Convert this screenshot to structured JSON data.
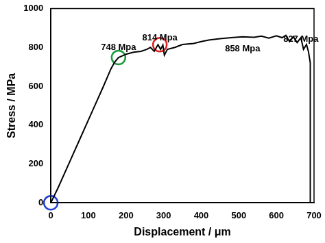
{
  "chart_data": {
    "type": "line",
    "x_label": "Displacement / μm",
    "y_label": "Stress / MPa",
    "xlim": [
      0,
      700
    ],
    "xticks": [
      0,
      100,
      200,
      300,
      400,
      500,
      600,
      700
    ],
    "ylim": [
      0,
      1000
    ],
    "yticks": [
      0,
      200,
      400,
      600,
      800,
      1000
    ],
    "grid": false,
    "series": [
      {
        "name": "Stress",
        "color": "#000000",
        "line_style": "solid",
        "x": [
          0,
          20,
          50,
          80,
          110,
          140,
          160,
          170,
          180,
          200,
          220,
          240,
          255,
          265,
          275,
          285,
          292,
          298,
          302,
          310,
          330,
          350,
          380,
          400,
          420,
          450,
          480,
          510,
          540,
          560,
          580,
          600,
          615,
          625,
          635,
          645,
          655,
          665,
          672,
          680,
          685,
          690,
          690
        ],
        "values": [
          0,
          80,
          210,
          340,
          470,
          600,
          690,
          725,
          748,
          765,
          775,
          780,
          790,
          800,
          780,
          814,
          790,
          812,
          760,
          790,
          800,
          815,
          820,
          830,
          838,
          845,
          850,
          855,
          852,
          858,
          848,
          860,
          850,
          862,
          830,
          855,
          825,
          850,
          790,
          815,
          780,
          720,
          0
        ]
      }
    ],
    "highlights": {
      "marker": "circle",
      "x": [
        0,
        180,
        290
      ],
      "values": [
        0,
        748,
        814
      ],
      "colors": [
        "#1f3fd6",
        "#1a9a3a",
        "#e02020"
      ]
    },
    "annotations": [
      {
        "text": "748 Mpa",
        "x": 180,
        "y": 800
      },
      {
        "text": "814 Mpa",
        "x": 290,
        "y": 848
      },
      {
        "text": "858 Mpa",
        "x": 510,
        "y": 792
      },
      {
        "text": "827 Mpa",
        "x": 665,
        "y": 840
      }
    ]
  }
}
